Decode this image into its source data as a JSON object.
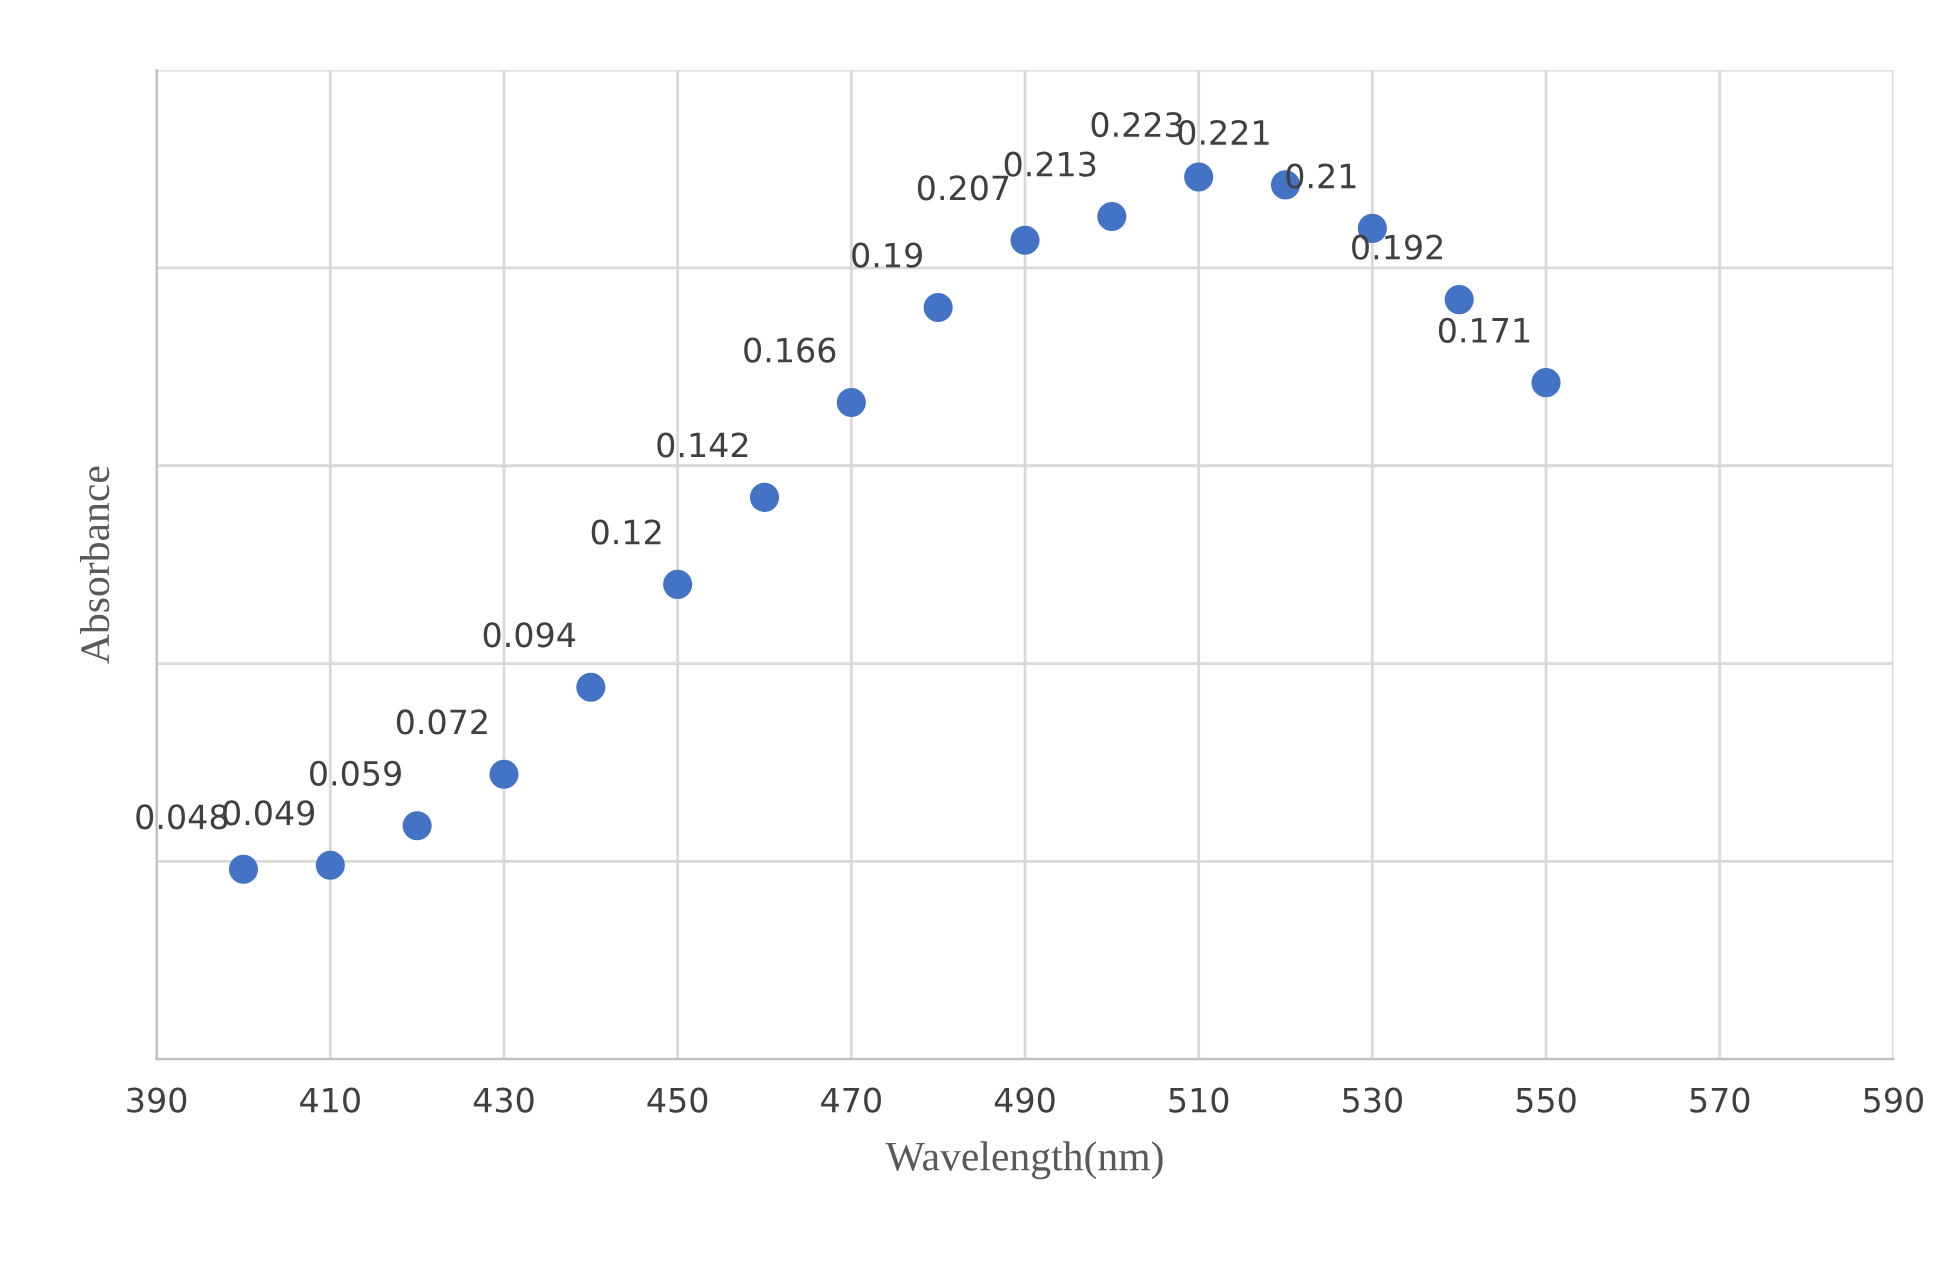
{
  "chart_data": {
    "type": "scatter",
    "xlabel": "Wavelength(nm)",
    "ylabel": "Absorbance",
    "x": [
      400,
      410,
      420,
      430,
      440,
      450,
      460,
      470,
      480,
      490,
      500,
      510,
      520,
      530,
      540,
      550
    ],
    "series": [
      {
        "color": "#4472c4",
        "values": [
          0.048,
          0.049,
          0.059,
          0.072,
          0.094,
          0.12,
          0.142,
          0.166,
          0.19,
          0.207,
          0.213,
          0.223,
          0.221,
          0.21,
          0.192,
          0.171
        ]
      }
    ],
    "data_labels": true,
    "marker": "circle",
    "xlim": [
      390,
      590
    ],
    "xticks": [
      390,
      410,
      430,
      450,
      470,
      490,
      510,
      530,
      550,
      570,
      590
    ],
    "ylim": [
      0,
      0.25
    ],
    "yticks": [
      {
        "value": 0,
        "label": null
      },
      {
        "value": 0.05,
        "label": null
      },
      {
        "value": 0.1,
        "label": null
      },
      {
        "value": 0.15,
        "label": null
      },
      {
        "value": 0.2,
        "label": null
      },
      {
        "value": 0.25,
        "label": null
      }
    ],
    "tick_labels": "x",
    "grid": true
  }
}
